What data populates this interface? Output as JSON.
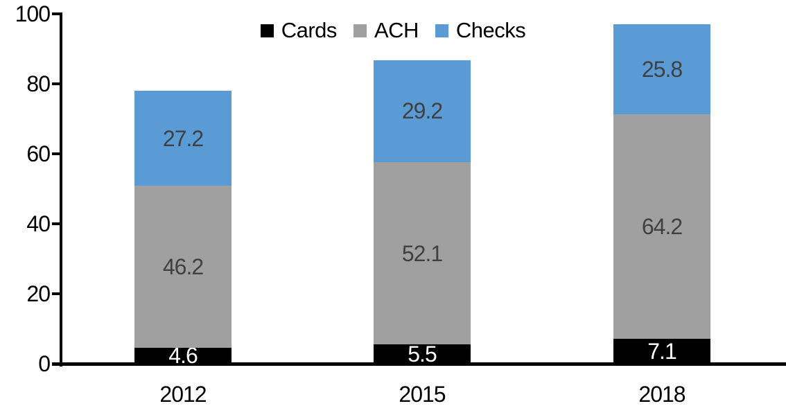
{
  "chart_data": {
    "type": "bar",
    "stacked": true,
    "title": "",
    "xlabel": "",
    "ylabel": "",
    "categories": [
      "2012",
      "2015",
      "2018"
    ],
    "series": [
      {
        "name": "Cards",
        "color": "#000000",
        "label_color": "#ffffff",
        "values": [
          4.6,
          5.5,
          7.1
        ]
      },
      {
        "name": "ACH",
        "color": "#a0a0a0",
        "label_color": "#404040",
        "values": [
          46.2,
          52.1,
          64.2
        ]
      },
      {
        "name": "Checks",
        "color": "#5b9bd5",
        "label_color": "#404040",
        "values": [
          27.2,
          29.2,
          25.8
        ]
      }
    ],
    "totals": [
      78.0,
      86.8,
      97.1
    ],
    "ylim": [
      0,
      100
    ],
    "yticks": [
      0,
      20,
      40,
      60,
      80,
      100
    ],
    "grid": false,
    "legend_position": "top",
    "axis_color": "#000000"
  }
}
